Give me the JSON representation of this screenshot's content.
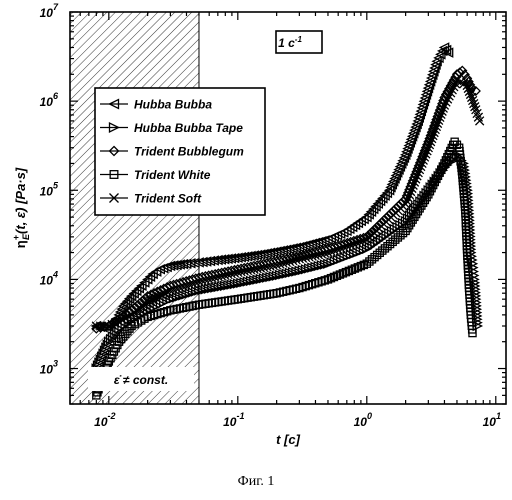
{
  "chart_data": {
    "type": "scatter",
    "x_scale": "log",
    "y_scale": "log",
    "xlim": [
      0.005,
      12
    ],
    "ylim": [
      400,
      10000000
    ],
    "x_ticks": [
      {
        "value": 0.01,
        "base": "10",
        "exp": "-2"
      },
      {
        "value": 0.1,
        "base": "10",
        "exp": "-1"
      },
      {
        "value": 1,
        "base": "10",
        "exp": "0"
      },
      {
        "value": 10,
        "base": "10",
        "exp": "1"
      }
    ],
    "y_ticks": [
      {
        "value": 1000,
        "base": "10",
        "exp": "3"
      },
      {
        "value": 10000,
        "base": "10",
        "exp": "4"
      },
      {
        "value": 100000,
        "base": "10",
        "exp": "5"
      },
      {
        "value": 1000000,
        "base": "10",
        "exp": "6"
      },
      {
        "value": 10000000,
        "base": "10",
        "exp": "7"
      }
    ],
    "xlabel": {
      "main": "t",
      "unit": " [c]"
    },
    "ylabel": {
      "eta": "η",
      "sup": "+",
      "sub": "E",
      "args": "(t, ε̇)",
      "unit": " [Pa·s]"
    },
    "rate_label": {
      "prefix": "1 c",
      "sup": "-1"
    },
    "shaded_region_label": "ε̇ ≠ const.",
    "shaded_region": {
      "x_from": 0.005,
      "x_to": 0.05
    },
    "grid": false,
    "legend_position": "upper-left",
    "series": [
      {
        "name": "Hubba Bubba",
        "marker": "triangle-left",
        "points": [
          [
            0.008,
            3000
          ],
          [
            0.009,
            2900
          ],
          [
            0.01,
            3100
          ],
          [
            0.011,
            3300
          ],
          [
            0.012,
            4000
          ],
          [
            0.013,
            5000
          ],
          [
            0.015,
            6500
          ],
          [
            0.018,
            8500
          ],
          [
            0.02,
            10000
          ],
          [
            0.022,
            11500
          ],
          [
            0.025,
            13000
          ],
          [
            0.03,
            14200
          ],
          [
            0.04,
            15000
          ],
          [
            0.05,
            15500
          ],
          [
            0.07,
            16500
          ],
          [
            0.1,
            17500
          ],
          [
            0.15,
            19000
          ],
          [
            0.2,
            20500
          ],
          [
            0.3,
            23000
          ],
          [
            0.5,
            28000
          ],
          [
            0.7,
            35000
          ],
          [
            1.0,
            50000
          ],
          [
            1.5,
            100000
          ],
          [
            2.0,
            250000
          ],
          [
            2.5,
            600000
          ],
          [
            3.0,
            1400000
          ],
          [
            3.5,
            2800000
          ],
          [
            4.0,
            4000000
          ],
          [
            4.3,
            3500000
          ]
        ]
      },
      {
        "name": "Hubba Bubba Tape",
        "marker": "triangle-right",
        "points": [
          [
            0.008,
            1000
          ],
          [
            0.01,
            2000
          ],
          [
            0.012,
            2800
          ],
          [
            0.015,
            3500
          ],
          [
            0.02,
            4500
          ],
          [
            0.03,
            6000
          ],
          [
            0.05,
            7500
          ],
          [
            0.1,
            9000
          ],
          [
            0.2,
            11000
          ],
          [
            0.3,
            12500
          ],
          [
            0.5,
            15000
          ],
          [
            1.0,
            22000
          ],
          [
            2.0,
            45000
          ],
          [
            3.0,
            100000
          ],
          [
            4.0,
            180000
          ],
          [
            5.0,
            250000
          ],
          [
            5.6,
            200000
          ],
          [
            6.0,
            100000
          ],
          [
            6.2,
            50000
          ],
          [
            6.4,
            20000
          ],
          [
            6.6,
            15000
          ],
          [
            6.8,
            10000
          ],
          [
            7.0,
            6000
          ],
          [
            7.2,
            3000
          ]
        ]
      },
      {
        "name": "Trident Bubblegum",
        "marker": "diamond",
        "points": [
          [
            0.008,
            2800
          ],
          [
            0.01,
            3000
          ],
          [
            0.015,
            4500
          ],
          [
            0.02,
            6500
          ],
          [
            0.03,
            8500
          ],
          [
            0.05,
            10500
          ],
          [
            0.1,
            13000
          ],
          [
            0.2,
            16000
          ],
          [
            0.3,
            18000
          ],
          [
            0.5,
            22000
          ],
          [
            1.0,
            30000
          ],
          [
            2.0,
            80000
          ],
          [
            3.0,
            350000
          ],
          [
            4.0,
            1100000
          ],
          [
            5.0,
            2000000
          ],
          [
            5.5,
            2200000
          ],
          [
            6.0,
            1800000
          ],
          [
            6.5,
            1400000
          ],
          [
            7.0,
            1300000
          ]
        ]
      },
      {
        "name": "Trident White",
        "marker": "square",
        "points": [
          [
            0.008,
            500
          ],
          [
            0.009,
            800
          ],
          [
            0.01,
            1200
          ],
          [
            0.012,
            2000
          ],
          [
            0.015,
            3000
          ],
          [
            0.02,
            3800
          ],
          [
            0.03,
            4500
          ],
          [
            0.05,
            5200
          ],
          [
            0.1,
            6000
          ],
          [
            0.2,
            7000
          ],
          [
            0.3,
            8000
          ],
          [
            0.5,
            10000
          ],
          [
            1.0,
            15000
          ],
          [
            2.0,
            35000
          ],
          [
            3.0,
            90000
          ],
          [
            4.0,
            200000
          ],
          [
            4.8,
            350000
          ],
          [
            5.2,
            300000
          ],
          [
            5.5,
            150000
          ],
          [
            5.8,
            60000
          ],
          [
            6.0,
            20000
          ],
          [
            6.2,
            8000
          ],
          [
            6.4,
            4000
          ],
          [
            6.6,
            2500
          ]
        ]
      },
      {
        "name": "Trident Soft",
        "marker": "x",
        "points": [
          [
            0.008,
            3000
          ],
          [
            0.01,
            3000
          ],
          [
            0.015,
            4000
          ],
          [
            0.02,
            5500
          ],
          [
            0.03,
            7500
          ],
          [
            0.05,
            9500
          ],
          [
            0.1,
            12000
          ],
          [
            0.2,
            14500
          ],
          [
            0.3,
            17000
          ],
          [
            0.5,
            20000
          ],
          [
            1.0,
            28000
          ],
          [
            2.0,
            70000
          ],
          [
            3.0,
            300000
          ],
          [
            4.0,
            900000
          ],
          [
            5.0,
            1700000
          ],
          [
            6.0,
            1500000
          ],
          [
            6.5,
            1100000
          ],
          [
            7.0,
            800000
          ],
          [
            7.5,
            600000
          ]
        ]
      }
    ]
  },
  "caption": "Фиг. 1"
}
